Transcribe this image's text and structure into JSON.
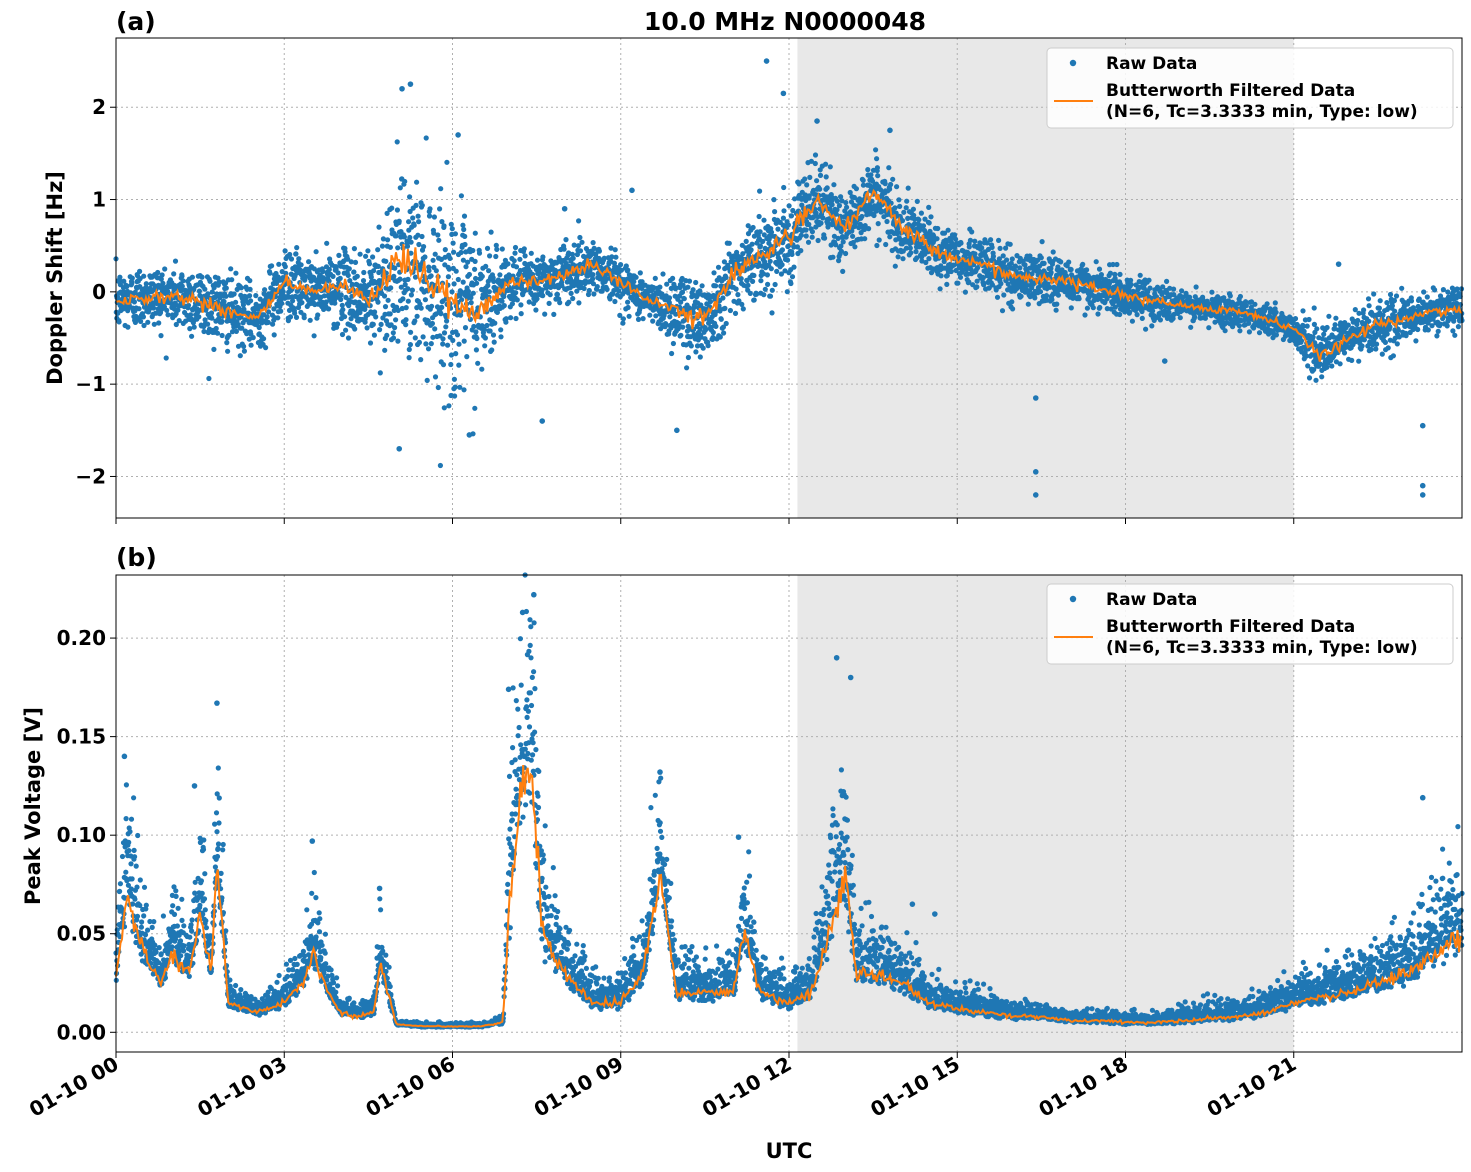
{
  "title": "10.0 MHz N0000048",
  "xlabel": "UTC",
  "colors": {
    "raw": "#1f77b4",
    "filtered": "#ff7f0e",
    "shade": "#e8e8e8",
    "grid": "#b0b0b0"
  },
  "legend": {
    "raw": "Raw Data",
    "filtered_line1": "Butterworth Filtered Data",
    "filtered_line2": "(N=6, Tc=3.3333 min, Type: low)"
  },
  "chart_data": [
    {
      "type": "scatter",
      "panel": "(a)",
      "ylabel": "Doppler Shift [Hz]",
      "xlim": [
        0,
        24
      ],
      "ylim": [
        -2.45,
        2.75
      ],
      "yticks": [
        -2,
        -1,
        0,
        1,
        2
      ],
      "ytick_labels": [
        "−2",
        "−1",
        "0",
        "1",
        "2"
      ],
      "grid": true,
      "legend_position": "top-right",
      "shaded_region_hours": [
        12.15,
        21.0
      ],
      "series": [
        {
          "name": "Raw Data",
          "style": "points",
          "x": [
            0,
            0.5,
            1,
            1.5,
            2,
            2.5,
            3,
            3.5,
            4,
            4.5,
            5,
            5.5,
            6,
            6.5,
            7,
            7.5,
            8,
            8.5,
            9,
            9.5,
            10,
            10.5,
            11,
            11.5,
            12,
            12.5,
            13,
            13.5,
            14,
            14.5,
            15,
            15.5,
            16,
            16.5,
            17,
            17.5,
            18,
            18.5,
            19,
            19.5,
            20,
            20.5,
            21,
            21.5,
            22,
            22.5,
            23,
            23.5,
            24
          ],
          "y": [
            -0.1,
            -0.05,
            -0.05,
            -0.1,
            -0.2,
            -0.3,
            0.1,
            0.0,
            0.05,
            -0.1,
            0.3,
            0.2,
            -0.1,
            -0.2,
            0.1,
            0.1,
            0.2,
            0.3,
            0.1,
            -0.1,
            -0.2,
            -0.3,
            0.2,
            0.4,
            0.6,
            1.0,
            0.65,
            1.1,
            0.7,
            0.5,
            0.35,
            0.3,
            0.15,
            0.15,
            0.1,
            0.05,
            -0.05,
            -0.1,
            -0.15,
            -0.2,
            -0.2,
            -0.3,
            -0.4,
            -0.7,
            -0.5,
            -0.35,
            -0.3,
            -0.2,
            -0.2
          ],
          "spread": [
            0.3,
            0.3,
            0.3,
            0.35,
            0.35,
            0.3,
            0.35,
            0.3,
            0.35,
            0.5,
            0.8,
            0.9,
            0.9,
            0.8,
            0.3,
            0.25,
            0.3,
            0.25,
            0.25,
            0.2,
            0.4,
            0.4,
            0.35,
            0.4,
            0.4,
            0.4,
            0.35,
            0.35,
            0.3,
            0.3,
            0.25,
            0.25,
            0.25,
            0.25,
            0.25,
            0.2,
            0.2,
            0.2,
            0.15,
            0.15,
            0.15,
            0.15,
            0.15,
            0.25,
            0.25,
            0.25,
            0.2,
            0.2,
            0.2
          ],
          "outliers": [
            [
              5.1,
              2.2
            ],
            [
              5.25,
              2.25
            ],
            [
              5.05,
              -1.7
            ],
            [
              6.1,
              1.7
            ],
            [
              6.3,
              -1.55
            ],
            [
              7.6,
              -1.4
            ],
            [
              8.0,
              0.9
            ],
            [
              9.2,
              1.1
            ],
            [
              10.0,
              -1.5
            ],
            [
              11.6,
              2.5
            ],
            [
              11.9,
              2.15
            ],
            [
              12.5,
              1.85
            ],
            [
              13.8,
              1.75
            ],
            [
              16.4,
              -1.95
            ],
            [
              16.4,
              -2.2
            ],
            [
              16.4,
              -1.15
            ],
            [
              18.7,
              -0.75
            ],
            [
              21.8,
              0.3
            ],
            [
              23.3,
              -2.2
            ],
            [
              23.3,
              -2.1
            ],
            [
              23.3,
              -1.45
            ]
          ]
        },
        {
          "name": "Butterworth Filtered Data",
          "style": "line",
          "x": [
            0,
            0.5,
            1,
            1.5,
            2,
            2.5,
            3,
            3.5,
            4,
            4.5,
            5,
            5.5,
            6,
            6.5,
            7,
            7.5,
            8,
            8.5,
            9,
            9.5,
            10,
            10.5,
            11,
            11.5,
            12,
            12.5,
            13,
            13.5,
            14,
            14.5,
            15,
            15.5,
            16,
            16.5,
            17,
            17.5,
            18,
            18.5,
            19,
            19.5,
            20,
            20.5,
            21,
            21.5,
            22,
            22.5,
            23,
            23.5,
            24
          ],
          "y": [
            -0.1,
            -0.05,
            -0.05,
            -0.1,
            -0.2,
            -0.3,
            0.1,
            0.0,
            0.05,
            -0.1,
            0.3,
            0.2,
            -0.1,
            -0.2,
            0.1,
            0.1,
            0.2,
            0.3,
            0.1,
            -0.1,
            -0.2,
            -0.3,
            0.2,
            0.4,
            0.6,
            1.0,
            0.65,
            1.1,
            0.7,
            0.5,
            0.35,
            0.3,
            0.15,
            0.15,
            0.1,
            0.05,
            -0.05,
            -0.1,
            -0.15,
            -0.2,
            -0.2,
            -0.3,
            -0.4,
            -0.7,
            -0.5,
            -0.35,
            -0.3,
            -0.2,
            -0.2
          ]
        }
      ]
    },
    {
      "type": "scatter",
      "panel": "(b)",
      "ylabel": "Peak Voltage [V]",
      "xlim": [
        0,
        24
      ],
      "ylim": [
        -0.01,
        0.232
      ],
      "yticks": [
        0.0,
        0.05,
        0.1,
        0.15,
        0.2
      ],
      "ytick_labels": [
        "0.00",
        "0.05",
        "0.10",
        "0.15",
        "0.20"
      ],
      "xticks": [
        0,
        3,
        6,
        9,
        12,
        15,
        18,
        21
      ],
      "xtick_labels": [
        "01-10 00",
        "01-10 03",
        "01-10 06",
        "01-10 09",
        "01-10 12",
        "01-10 15",
        "01-10 18",
        "01-10 21"
      ],
      "grid": true,
      "legend_position": "top-right",
      "shaded_region_hours": [
        12.15,
        21.0
      ],
      "series": [
        {
          "name": "Raw Data",
          "style": "points",
          "x": [
            0,
            0.2,
            0.5,
            0.8,
            1.0,
            1.3,
            1.5,
            1.7,
            1.8,
            2.0,
            2.5,
            3.0,
            3.3,
            3.5,
            3.8,
            4.0,
            4.3,
            4.6,
            4.7,
            5.0,
            5.5,
            6.0,
            6.5,
            6.9,
            7.0,
            7.2,
            7.4,
            7.6,
            8.0,
            8.5,
            9.0,
            9.4,
            9.7,
            10.0,
            10.5,
            11.0,
            11.2,
            11.5,
            12.0,
            12.4,
            12.7,
            13.0,
            13.2,
            13.5,
            14.0,
            14.5,
            15.0,
            15.5,
            16.0,
            16.5,
            17.0,
            17.5,
            18.0,
            18.5,
            19.0,
            19.5,
            20.0,
            20.5,
            21.0,
            21.5,
            22.0,
            22.5,
            23.0,
            23.5,
            24.0
          ],
          "y": [
            0.03,
            0.07,
            0.04,
            0.025,
            0.04,
            0.03,
            0.06,
            0.03,
            0.09,
            0.015,
            0.01,
            0.015,
            0.025,
            0.04,
            0.02,
            0.01,
            0.008,
            0.01,
            0.035,
            0.004,
            0.003,
            0.003,
            0.003,
            0.005,
            0.06,
            0.12,
            0.14,
            0.05,
            0.03,
            0.015,
            0.015,
            0.03,
            0.08,
            0.02,
            0.02,
            0.02,
            0.05,
            0.02,
            0.015,
            0.02,
            0.05,
            0.08,
            0.03,
            0.03,
            0.025,
            0.015,
            0.012,
            0.01,
            0.008,
            0.008,
            0.006,
            0.006,
            0.005,
            0.005,
            0.006,
            0.007,
            0.008,
            0.01,
            0.015,
            0.018,
            0.02,
            0.025,
            0.03,
            0.04,
            0.05
          ],
          "spread": [
            0.015,
            0.03,
            0.015,
            0.01,
            0.015,
            0.012,
            0.025,
            0.01,
            0.03,
            0.006,
            0.004,
            0.008,
            0.01,
            0.02,
            0.008,
            0.005,
            0.004,
            0.004,
            0.015,
            0.001,
            0.001,
            0.001,
            0.001,
            0.002,
            0.04,
            0.05,
            0.06,
            0.03,
            0.015,
            0.008,
            0.008,
            0.015,
            0.03,
            0.01,
            0.01,
            0.012,
            0.02,
            0.01,
            0.008,
            0.01,
            0.03,
            0.04,
            0.015,
            0.015,
            0.012,
            0.008,
            0.006,
            0.006,
            0.004,
            0.004,
            0.003,
            0.003,
            0.003,
            0.003,
            0.004,
            0.005,
            0.005,
            0.006,
            0.008,
            0.009,
            0.01,
            0.012,
            0.015,
            0.02,
            0.025
          ],
          "outliers": [
            [
              0.15,
              0.14
            ],
            [
              1.4,
              0.125
            ],
            [
              1.8,
              0.167
            ],
            [
              3.5,
              0.097
            ],
            [
              4.7,
              0.073
            ],
            [
              7.0,
              0.174
            ],
            [
              7.25,
              0.213
            ],
            [
              7.45,
              0.222
            ],
            [
              9.7,
              0.132
            ],
            [
              11.1,
              0.099
            ],
            [
              12.85,
              0.19
            ],
            [
              13.1,
              0.18
            ],
            [
              14.2,
              0.065
            ],
            [
              14.6,
              0.06
            ],
            [
              23.3,
              0.119
            ]
          ]
        },
        {
          "name": "Butterworth Filtered Data",
          "style": "line",
          "x": [
            0,
            0.2,
            0.5,
            0.8,
            1.0,
            1.3,
            1.5,
            1.7,
            1.8,
            2.0,
            2.5,
            3.0,
            3.3,
            3.5,
            3.8,
            4.0,
            4.3,
            4.6,
            4.7,
            5.0,
            5.5,
            6.0,
            6.5,
            6.9,
            7.0,
            7.2,
            7.4,
            7.6,
            8.0,
            8.5,
            9.0,
            9.4,
            9.7,
            10.0,
            10.5,
            11.0,
            11.2,
            11.5,
            12.0,
            12.4,
            12.7,
            13.0,
            13.2,
            13.5,
            14.0,
            14.5,
            15.0,
            15.5,
            16.0,
            16.5,
            17.0,
            17.5,
            18.0,
            18.5,
            19.0,
            19.5,
            20.0,
            20.5,
            21.0,
            21.5,
            22.0,
            22.5,
            23.0,
            23.5,
            24.0
          ],
          "y": [
            0.03,
            0.07,
            0.04,
            0.025,
            0.04,
            0.03,
            0.06,
            0.03,
            0.09,
            0.015,
            0.01,
            0.015,
            0.025,
            0.04,
            0.02,
            0.01,
            0.008,
            0.01,
            0.035,
            0.004,
            0.003,
            0.003,
            0.003,
            0.005,
            0.06,
            0.12,
            0.14,
            0.05,
            0.03,
            0.015,
            0.015,
            0.03,
            0.08,
            0.02,
            0.02,
            0.02,
            0.05,
            0.02,
            0.015,
            0.02,
            0.05,
            0.08,
            0.03,
            0.03,
            0.025,
            0.015,
            0.012,
            0.01,
            0.008,
            0.008,
            0.006,
            0.006,
            0.005,
            0.005,
            0.006,
            0.007,
            0.008,
            0.01,
            0.015,
            0.018,
            0.02,
            0.025,
            0.03,
            0.04,
            0.05
          ]
        }
      ]
    }
  ]
}
